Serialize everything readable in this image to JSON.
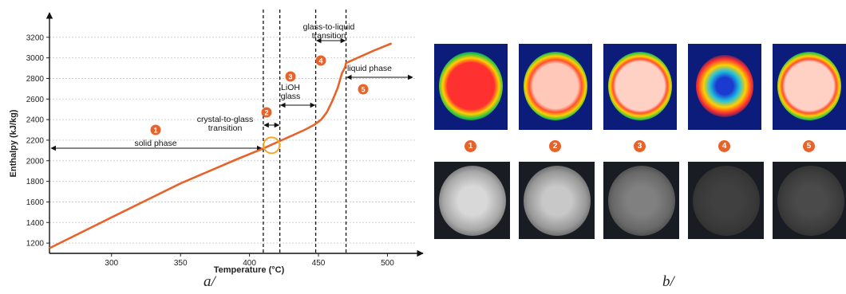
{
  "chart_data": {
    "type": "line",
    "title": "",
    "xlabel": "Temperature (°C)",
    "ylabel": "Enthalpy (kJ/kg)",
    "xlim": [
      255,
      520
    ],
    "ylim": [
      1100,
      3330
    ],
    "xticks": [
      300,
      350,
      400,
      450,
      500
    ],
    "yticks": [
      1200,
      1400,
      1600,
      1800,
      2000,
      2200,
      2400,
      2600,
      2800,
      3000,
      3200
    ],
    "grid": "horizontal dotted",
    "series": [
      {
        "color": "#e8632a",
        "x": [
          255,
          300,
          350,
          390,
          410,
          415,
          420,
          430,
          440,
          447,
          452,
          456,
          460,
          464,
          467,
          469,
          469.5,
          470,
          480,
          490,
          503
        ],
        "y": [
          1150,
          1450,
          1780,
          2010,
          2120,
          2150,
          2180,
          2240,
          2300,
          2350,
          2400,
          2470,
          2580,
          2710,
          2850,
          2900,
          2920,
          2950,
          3010,
          3070,
          3140
        ]
      }
    ],
    "vlines": [
      410,
      422,
      448,
      470
    ],
    "annotations": [
      {
        "text": "solid phase",
        "badge": "1"
      },
      {
        "text": "crystal-to-glass transition",
        "badge": "2"
      },
      {
        "text": "LiOH glass",
        "badge": "3"
      },
      {
        "text": "glass-to-liquid transition",
        "badge": "4"
      },
      {
        "text": "liquid phase",
        "badge": "5"
      }
    ]
  },
  "panel_labels": {
    "a": "a/",
    "b": "b/"
  },
  "photo_numbers": [
    "1",
    "2",
    "3",
    "4",
    "5"
  ],
  "colors": {
    "curve": "#e8632a",
    "highlight": "#f5a623",
    "badge": "#e8632a"
  }
}
